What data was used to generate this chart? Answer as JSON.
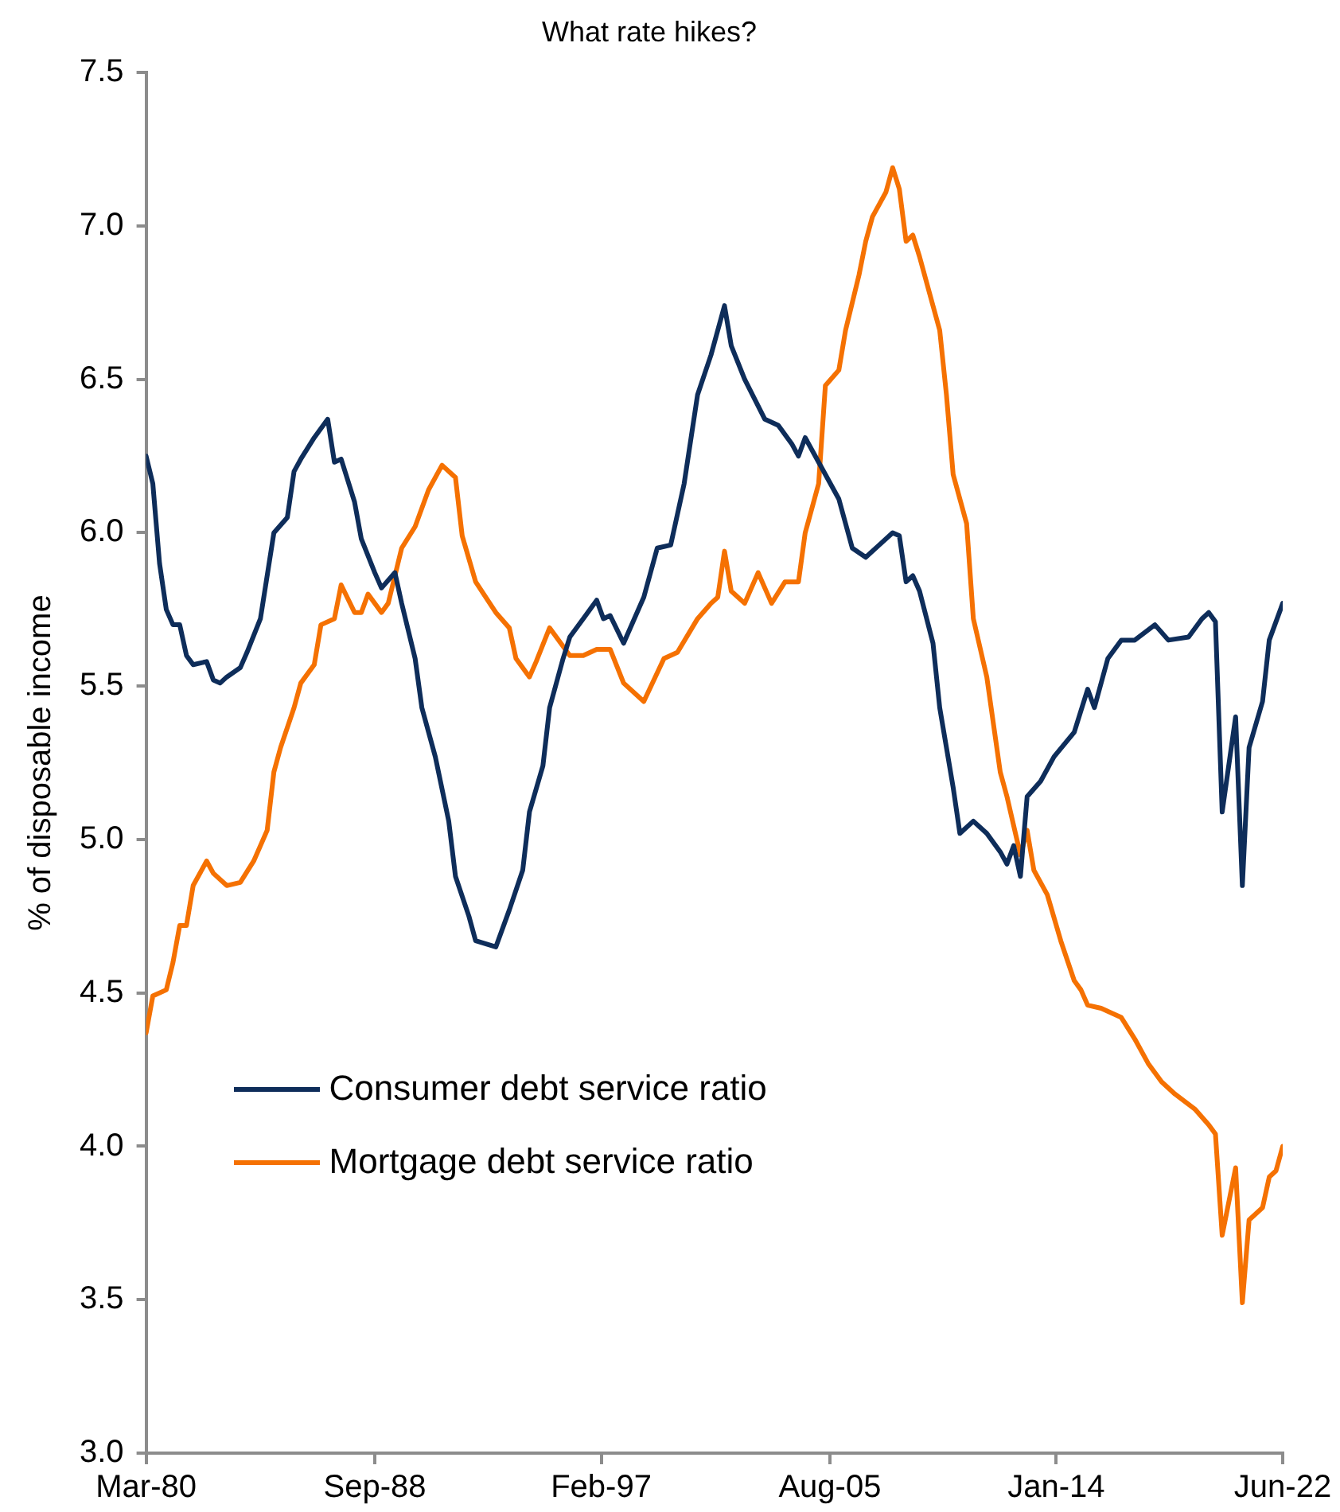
{
  "chart_data": {
    "type": "line",
    "title": "What rate hikes?",
    "ylabel": "% of disposable income",
    "xlim": [
      "1980-03",
      "2022-06"
    ],
    "xticks": [
      {
        "value": "1980-03",
        "label": "Mar-80"
      },
      {
        "value": "1988-09",
        "label": "Sep-88"
      },
      {
        "value": "1997-02",
        "label": "Feb-97"
      },
      {
        "value": "2005-08",
        "label": "Aug-05"
      },
      {
        "value": "2014-01",
        "label": "Jan-14"
      },
      {
        "value": "2022-06",
        "label": "Jun-22"
      }
    ],
    "ylim": [
      3,
      7.5
    ],
    "yticks": [
      {
        "value": 3,
        "label": "3.0"
      },
      {
        "value": 3.5,
        "label": "3.5"
      },
      {
        "value": 4,
        "label": "4.0"
      },
      {
        "value": 4.5,
        "label": "4.5"
      },
      {
        "value": 5,
        "label": "5.0"
      },
      {
        "value": 5.5,
        "label": "5.5"
      },
      {
        "value": 6,
        "label": "6.0"
      },
      {
        "value": 6.5,
        "label": "6.5"
      },
      {
        "value": 7,
        "label": "7.0"
      },
      {
        "value": 7.5,
        "label": "7.5"
      }
    ],
    "grid": false,
    "legend": "bottom left",
    "marker": "none",
    "line_style": "solid",
    "series": [
      {
        "name": "Consumer debt service ratio",
        "color": "#0e2d5a",
        "x": [
          "1980-03",
          "1980-06",
          "1980-09",
          "1980-12",
          "1981-03",
          "1981-06",
          "1981-09",
          "1981-12",
          "1982-06",
          "1982-09",
          "1982-12",
          "1983-03",
          "1983-09",
          "1983-12",
          "1984-06",
          "1984-09",
          "1984-12",
          "1985-06",
          "1985-09",
          "1985-12",
          "1986-06",
          "1986-12",
          "1987-03",
          "1987-06",
          "1987-12",
          "1988-03",
          "1988-09",
          "1988-12",
          "1989-06",
          "1989-09",
          "1990-03",
          "1990-06",
          "1990-12",
          "1991-06",
          "1991-09",
          "1992-03",
          "1992-06",
          "1993-03",
          "1993-09",
          "1994-03",
          "1994-06",
          "1994-12",
          "1995-03",
          "1995-09",
          "1995-12",
          "1996-06",
          "1996-12",
          "1997-03",
          "1997-06",
          "1997-12",
          "1998-03",
          "1998-09",
          "1999-03",
          "1999-09",
          "2000-03",
          "2000-09",
          "2001-03",
          "2001-09",
          "2001-12",
          "2002-06",
          "2003-03",
          "2003-09",
          "2004-03",
          "2004-06",
          "2004-09",
          "2005-06",
          "2005-12",
          "2006-06",
          "2006-12",
          "2007-06",
          "2007-12",
          "2008-03",
          "2008-06",
          "2008-09",
          "2008-12",
          "2009-06",
          "2009-09",
          "2010-03",
          "2010-06",
          "2010-12",
          "2011-06",
          "2011-12",
          "2012-03",
          "2012-06",
          "2012-09",
          "2012-12",
          "2013-06",
          "2013-12",
          "2014-09",
          "2015-03",
          "2015-06",
          "2015-12",
          "2016-06",
          "2016-12",
          "2017-09",
          "2018-03",
          "2018-12",
          "2019-06",
          "2019-09",
          "2019-12",
          "2020-03",
          "2020-09",
          "2020-12",
          "2021-03",
          "2021-09",
          "2021-12",
          "2022-06"
        ],
        "values": [
          6.25,
          6.16,
          5.9,
          5.75,
          5.7,
          5.7,
          5.6,
          5.57,
          5.58,
          5.52,
          5.51,
          5.53,
          5.56,
          5.61,
          5.72,
          5.86,
          6.0,
          6.05,
          6.2,
          6.24,
          6.31,
          6.37,
          6.23,
          6.24,
          6.1,
          5.98,
          5.87,
          5.82,
          5.87,
          5.77,
          5.59,
          5.43,
          5.27,
          5.06,
          4.88,
          4.75,
          4.67,
          4.65,
          4.77,
          4.9,
          5.09,
          5.24,
          5.43,
          5.59,
          5.66,
          5.72,
          5.78,
          5.72,
          5.73,
          5.64,
          5.69,
          5.79,
          5.95,
          5.96,
          6.16,
          6.45,
          6.58,
          6.74,
          6.61,
          6.5,
          6.37,
          6.35,
          6.29,
          6.25,
          6.31,
          6.19,
          6.11,
          5.95,
          5.92,
          5.96,
          6.0,
          5.99,
          5.84,
          5.86,
          5.81,
          5.64,
          5.43,
          5.17,
          5.02,
          5.06,
          5.02,
          4.96,
          4.92,
          4.98,
          4.88,
          5.14,
          5.19,
          5.27,
          5.35,
          5.49,
          5.43,
          5.59,
          5.65,
          5.65,
          5.7,
          5.65,
          5.66,
          5.72,
          5.74,
          5.71,
          5.09,
          5.4,
          4.85,
          5.3,
          5.45,
          5.65,
          5.77
        ]
      },
      {
        "name": "Mortgage debt service ratio",
        "color": "#f57102",
        "x": [
          "1980-03",
          "1980-06",
          "1980-12",
          "1981-03",
          "1981-06",
          "1981-09",
          "1981-12",
          "1982-06",
          "1982-09",
          "1983-03",
          "1983-09",
          "1984-03",
          "1984-09",
          "1984-12",
          "1985-03",
          "1985-09",
          "1985-12",
          "1986-06",
          "1986-09",
          "1987-03",
          "1987-06",
          "1987-12",
          "1988-03",
          "1988-06",
          "1988-12",
          "1989-03",
          "1989-09",
          "1990-03",
          "1990-09",
          "1991-03",
          "1991-09",
          "1991-12",
          "1992-06",
          "1993-03",
          "1993-09",
          "1993-12",
          "1994-06",
          "1994-09",
          "1995-03",
          "1995-12",
          "1996-06",
          "1996-12",
          "1997-06",
          "1997-12",
          "1998-09",
          "1999-06",
          "1999-12",
          "2000-09",
          "2001-03",
          "2001-06",
          "2001-09",
          "2001-12",
          "2002-06",
          "2002-12",
          "2003-06",
          "2003-12",
          "2004-06",
          "2004-09",
          "2005-03",
          "2005-06",
          "2005-12",
          "2006-03",
          "2006-09",
          "2006-12",
          "2007-03",
          "2007-09",
          "2007-12",
          "2008-03",
          "2008-06",
          "2008-09",
          "2008-12",
          "2009-06",
          "2009-09",
          "2009-12",
          "2010-03",
          "2010-09",
          "2010-12",
          "2011-06",
          "2011-12",
          "2012-03",
          "2012-09",
          "2012-12",
          "2013-03",
          "2013-09",
          "2014-03",
          "2014-09",
          "2014-12",
          "2015-03",
          "2015-09",
          "2016-06",
          "2016-12",
          "2017-06",
          "2017-12",
          "2018-06",
          "2019-03",
          "2019-09",
          "2019-12",
          "2020-03",
          "2020-09",
          "2020-12",
          "2021-03",
          "2021-09",
          "2021-12",
          "2022-03",
          "2022-06"
        ],
        "values": [
          4.37,
          4.49,
          4.51,
          4.6,
          4.72,
          4.72,
          4.85,
          4.93,
          4.89,
          4.85,
          4.86,
          4.93,
          5.03,
          5.22,
          5.3,
          5.43,
          5.51,
          5.57,
          5.7,
          5.72,
          5.83,
          5.74,
          5.74,
          5.8,
          5.74,
          5.77,
          5.95,
          6.02,
          6.14,
          6.22,
          6.18,
          5.99,
          5.84,
          5.74,
          5.69,
          5.59,
          5.53,
          5.58,
          5.69,
          5.6,
          5.6,
          5.62,
          5.62,
          5.51,
          5.45,
          5.59,
          5.61,
          5.72,
          5.77,
          5.79,
          5.94,
          5.81,
          5.77,
          5.87,
          5.77,
          5.84,
          5.84,
          6.0,
          6.16,
          6.48,
          6.53,
          6.66,
          6.84,
          6.95,
          7.03,
          7.11,
          7.19,
          7.12,
          6.95,
          6.97,
          6.9,
          6.74,
          6.66,
          6.45,
          6.19,
          6.03,
          5.72,
          5.53,
          5.22,
          5.14,
          4.95,
          5.03,
          4.9,
          4.82,
          4.67,
          4.54,
          4.51,
          4.46,
          4.45,
          4.42,
          4.35,
          4.27,
          4.21,
          4.17,
          4.12,
          4.07,
          4.04,
          3.71,
          3.93,
          3.49,
          3.76,
          3.8,
          3.9,
          3.92,
          4.0
        ]
      }
    ]
  }
}
